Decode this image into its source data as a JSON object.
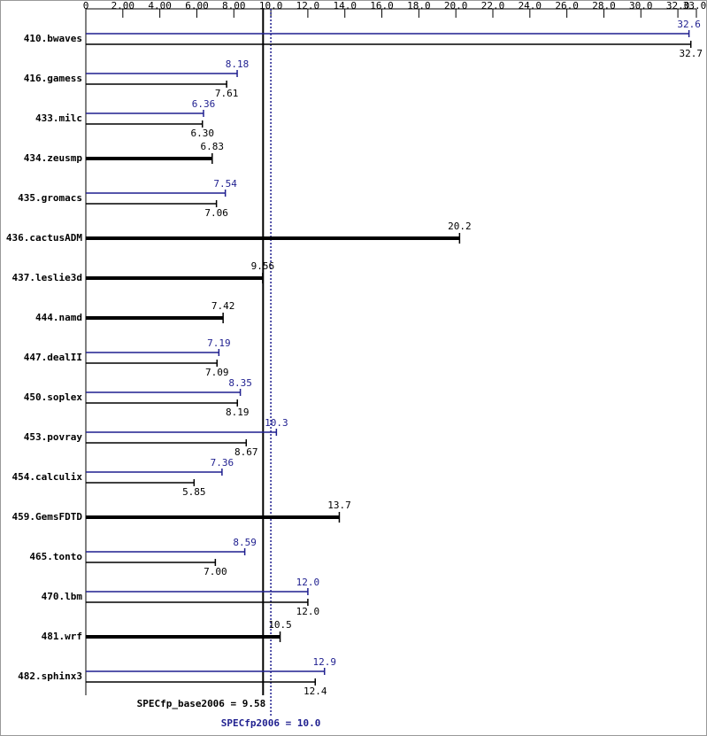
{
  "chart_data": {
    "type": "bar",
    "categories": [
      "410.bwaves",
      "416.gamess",
      "433.milc",
      "434.zeusmp",
      "435.gromacs",
      "436.cactusADM",
      "437.leslie3d",
      "444.namd",
      "447.dealII",
      "450.soplex",
      "453.povray",
      "454.calculix",
      "459.GemsFDTD",
      "465.tonto",
      "470.lbm",
      "481.wrf",
      "482.sphinx3"
    ],
    "series": [
      {
        "color": "#1f1f8f",
        "values": [
          32.6,
          8.18,
          6.36,
          null,
          7.54,
          null,
          null,
          null,
          7.19,
          8.35,
          10.3,
          7.36,
          null,
          8.59,
          12.0,
          null,
          12.9
        ],
        "value_labels": [
          "32.6",
          "8.18",
          "6.36",
          null,
          "7.54",
          null,
          null,
          null,
          "7.19",
          "8.35",
          "10.3",
          "7.36",
          null,
          "8.59",
          "12.0",
          null,
          "12.9"
        ]
      },
      {
        "color": "#000000",
        "values": [
          32.7,
          7.61,
          6.3,
          6.83,
          7.06,
          20.2,
          9.56,
          7.42,
          7.09,
          8.19,
          8.67,
          5.85,
          13.7,
          7.0,
          12.0,
          10.5,
          12.4
        ],
        "value_labels": [
          "32.7",
          "7.61",
          "6.30",
          "6.83",
          "7.06",
          "20.2",
          "9.56",
          "7.42",
          "7.09",
          "8.19",
          "8.67",
          "5.85",
          "13.7",
          "7.00",
          "12.0",
          "10.5",
          "12.4"
        ]
      }
    ],
    "xlim": [
      0,
      33
    ],
    "xticks": [
      0,
      {
        "value": 2,
        "label": "2.00"
      },
      {
        "value": 4,
        "label": "4.00"
      },
      {
        "value": 6,
        "label": "6.00"
      },
      {
        "value": 8,
        "label": "8.00"
      },
      {
        "value": 10,
        "label": "10.0"
      },
      {
        "value": 12,
        "label": "12.0"
      },
      {
        "value": 14,
        "label": "14.0"
      },
      {
        "value": 16,
        "label": "16.0"
      },
      {
        "value": 18,
        "label": "18.0"
      },
      {
        "value": 20,
        "label": "20.0"
      },
      {
        "value": 22,
        "label": "22.0"
      },
      {
        "value": 24,
        "label": "24.0"
      },
      {
        "value": 26,
        "label": "26.0"
      },
      {
        "value": 28,
        "label": "28.0"
      },
      {
        "value": 30,
        "label": "30.0"
      },
      {
        "value": 32,
        "label": "32.0"
      },
      {
        "value": 33,
        "label": "33.0"
      }
    ],
    "reference_lines": [
      {
        "label": "SPECfp_base2006 = 9.58",
        "value": 9.58,
        "color": "#000000"
      },
      {
        "label": "SPECfp2006 = 10.0",
        "value": 10.0,
        "color": "#1f1f8f"
      }
    ]
  }
}
